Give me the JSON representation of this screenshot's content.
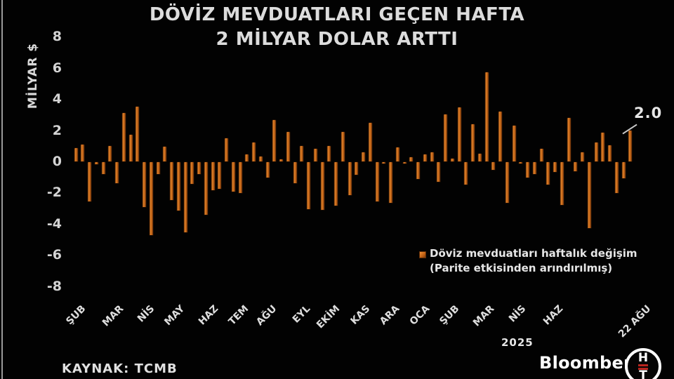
{
  "title": {
    "line1": "DÖVİZ MEVDUATLARI GEÇEN HAFTA",
    "line2": "2 MİLYAR DOLAR ARTTI"
  },
  "y_axis": {
    "label": "MİLYAR $"
  },
  "legend": {
    "line1": "Döviz mevduatları haftalık değişim",
    "line2": "(Parite etkisinden arındırılmış)",
    "marker_color": "#cf6c18"
  },
  "annotation": {
    "text": "2.0"
  },
  "footer": {
    "source": "KAYNAK: TCMB",
    "year": "2025",
    "brand": "Bloomberg",
    "logo_top": "H",
    "logo_bottom": "T"
  },
  "chart_data": {
    "type": "bar",
    "title": "DÖVİZ MEVDUATLARI GEÇEN HAFTA 2 MİLYAR DOLAR ARTTI",
    "ylabel": "MİLYAR $",
    "ylim": [
      -8,
      8
    ],
    "y_ticks": [
      8,
      6,
      4,
      2,
      0,
      -2,
      -4,
      -6,
      -8
    ],
    "grid": false,
    "bar_color": "#cf6c18",
    "legend_position": "below-right",
    "last_value_annotation": "2.0",
    "series": [
      {
        "name": "Döviz mevduatları haftalık değişim (Parite etkisinden arındırılmış)",
        "values": [
          0.85,
          1.1,
          -2.5,
          -0.15,
          -0.75,
          1.0,
          -1.35,
          3.1,
          1.7,
          3.5,
          -2.9,
          -4.7,
          -0.75,
          0.95,
          -2.45,
          -3.1,
          -4.5,
          -1.4,
          -0.75,
          -3.4,
          -1.8,
          -1.7,
          1.5,
          -1.9,
          -2.0,
          0.45,
          1.2,
          0.3,
          -1.0,
          2.65,
          0.15,
          1.9,
          -1.35,
          1.0,
          -3.0,
          0.8,
          -3.05,
          1.0,
          -2.8,
          1.9,
          -2.1,
          -0.8,
          0.6,
          2.5,
          -2.5,
          -0.1,
          -2.6,
          0.9,
          -0.1,
          0.25,
          -1.1,
          0.45,
          0.6,
          -1.25,
          3.0,
          0.2,
          3.45,
          -1.45,
          2.4,
          0.5,
          5.7,
          -0.5,
          3.2,
          -2.6,
          2.3,
          -0.1,
          -1.0,
          -0.75,
          0.8,
          -1.45,
          -0.65,
          -2.75,
          2.8,
          -0.6,
          0.6,
          -4.25,
          1.2,
          1.85,
          1.05,
          -2.0,
          -1.05,
          2.0
        ]
      }
    ],
    "x_tick_labels": [
      {
        "label": "ŞUB",
        "bar_index": 0
      },
      {
        "label": "MAR",
        "bar_index": 5.5
      },
      {
        "label": "NİS",
        "bar_index": 10
      },
      {
        "label": "MAY",
        "bar_index": 14.5
      },
      {
        "label": "HAZ",
        "bar_index": 19.4
      },
      {
        "label": "TEM",
        "bar_index": 23.8
      },
      {
        "label": "AĞU",
        "bar_index": 27.9
      },
      {
        "label": "EYL",
        "bar_index": 32.8
      },
      {
        "label": "EKİM",
        "bar_index": 37.1
      },
      {
        "label": "KAS",
        "bar_index": 41.5
      },
      {
        "label": "ARA",
        "bar_index": 45.8
      },
      {
        "label": "OCA",
        "bar_index": 50.2
      },
      {
        "label": "ŞUB",
        "bar_index": 54.5
      },
      {
        "label": "MAR",
        "bar_index": 59.7
      },
      {
        "label": "NİS",
        "bar_index": 64.3
      },
      {
        "label": "HAZ",
        "bar_index": 69.7
      },
      {
        "label": "22 AĞU",
        "bar_index": 82.5
      }
    ],
    "year_label": "2025"
  }
}
